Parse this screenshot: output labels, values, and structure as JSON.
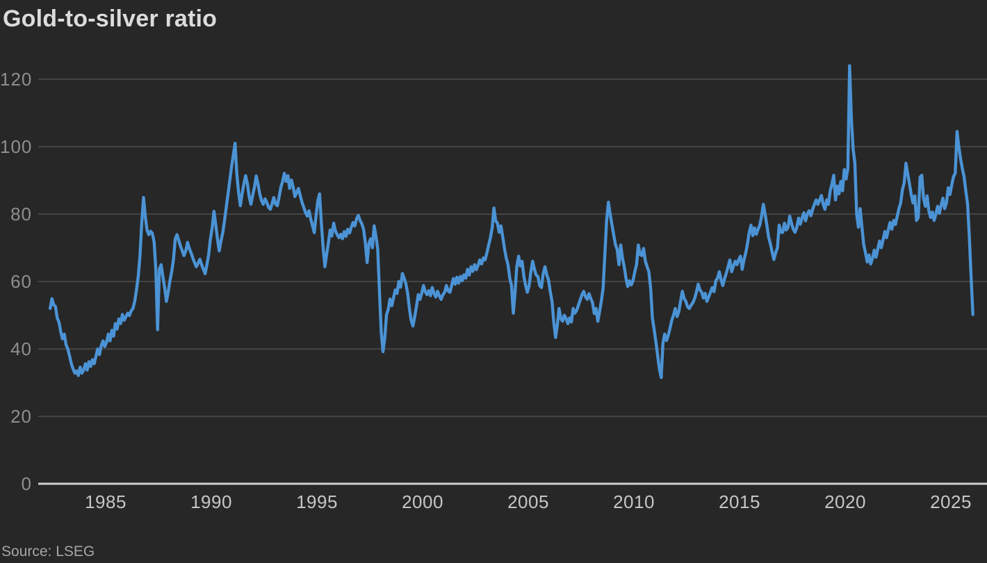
{
  "chart": {
    "title": "Gold-to-silver ratio",
    "source": "Source: LSEG"
  },
  "chart_data": {
    "type": "line",
    "title": "Gold-to-silver ratio",
    "series_name": "Gold-to-silver ratio",
    "source": "Source: LSEG",
    "grid": "horizontal",
    "legend": "none",
    "line_color": "#4b93d5",
    "background_color": "#272727",
    "axis_line_color": "#cfcfcf",
    "gridline_color": "#565656",
    "y_tick_label_color": "#8f8f8f",
    "x_tick_label_color": "#c6c6c6",
    "x_ticks": [
      1985,
      1990,
      1995,
      2000,
      2005,
      2010,
      2015,
      2020,
      2025
    ],
    "y_ticks": [
      0,
      20,
      40,
      60,
      80,
      100,
      120
    ],
    "ylim": [
      0,
      128
    ],
    "xlim": [
      1982.3,
      2026.3
    ],
    "x_start": 1982.375,
    "x_step_years": 0.0833333,
    "values": [
      52.0,
      54.9,
      53.1,
      52.6,
      49.2,
      47.9,
      45.1,
      43.0,
      44.4,
      41.3,
      40.0,
      37.9,
      35.6,
      34.1,
      32.8,
      33.5,
      32.1,
      34.6,
      32.8,
      33.7,
      35.6,
      33.7,
      36.2,
      34.8,
      36.8,
      35.6,
      37.9,
      40.0,
      38.3,
      41.0,
      42.4,
      40.7,
      42.0,
      44.4,
      42.4,
      45.5,
      43.8,
      47.5,
      45.9,
      48.9,
      47.5,
      50.2,
      48.5,
      49.5,
      50.6,
      49.9,
      51.3,
      52.0,
      54.1,
      57.4,
      61.5,
      67.7,
      77.3,
      84.9,
      79.4,
      75.3,
      73.9,
      74.9,
      74.3,
      71.8,
      63.6,
      45.7,
      63.6,
      65.0,
      61.5,
      58.2,
      54.1,
      56.8,
      60.2,
      62.9,
      66.4,
      72.6,
      73.9,
      72.2,
      70.5,
      69.1,
      67.7,
      69.1,
      71.6,
      69.8,
      68.5,
      67.0,
      65.6,
      64.4,
      65.4,
      66.6,
      65.0,
      63.6,
      62.3,
      65.0,
      68.0,
      72.6,
      76.0,
      80.8,
      77.0,
      72.6,
      69.1,
      72.0,
      74.5,
      78.0,
      82.0,
      86.0,
      90.0,
      94.0,
      97.5,
      101.0,
      92.0,
      86.3,
      82.5,
      86.0,
      89.0,
      91.4,
      89.0,
      85.2,
      82.9,
      85.5,
      88.0,
      91.3,
      89.0,
      86.0,
      84.0,
      82.9,
      84.5,
      83.5,
      82.0,
      81.4,
      83.0,
      84.9,
      83.0,
      82.5,
      85.0,
      88.0,
      89.7,
      92.1,
      89.7,
      91.4,
      87.6,
      90.1,
      88.0,
      85.2,
      86.5,
      87.6,
      85.5,
      83.5,
      82.0,
      80.5,
      79.4,
      81.0,
      78.5,
      76.5,
      74.5,
      79.5,
      84.0,
      86.0,
      77.5,
      70.0,
      64.4,
      68.0,
      71.5,
      75.3,
      73.5,
      77.3,
      75.0,
      73.9,
      73.0,
      74.0,
      72.7,
      74.8,
      73.4,
      75.5,
      74.4,
      76.1,
      77.5,
      76.5,
      78.6,
      79.6,
      78.1,
      77.1,
      75.5,
      71.3,
      65.6,
      71.3,
      72.7,
      70.0,
      76.5,
      73.4,
      69.7,
      57.3,
      44.9,
      39.2,
      43.1,
      50.1,
      51.8,
      54.8,
      52.8,
      55.2,
      57.5,
      56.5,
      60.0,
      58.3,
      62.4,
      61.0,
      59.4,
      56.5,
      52.0,
      48.5,
      46.8,
      49.5,
      52.5,
      56.1,
      54.7,
      56.5,
      58.8,
      57.0,
      56.1,
      57.3,
      55.8,
      58.2,
      56.5,
      55.4,
      57.1,
      55.8,
      54.7,
      56.0,
      56.8,
      58.8,
      57.2,
      56.8,
      58.8,
      60.9,
      59.2,
      61.3,
      59.5,
      61.5,
      60.2,
      62.0,
      61.0,
      63.6,
      61.9,
      64.4,
      63.0,
      65.0,
      63.5,
      64.8,
      66.4,
      65.2,
      67.0,
      66.4,
      68.5,
      70.8,
      72.9,
      75.9,
      81.8,
      78.0,
      77.3,
      74.6,
      76.5,
      73.2,
      69.8,
      67.0,
      65.0,
      61.0,
      58.8,
      50.6,
      56.8,
      64.4,
      67.5,
      64.6,
      66.0,
      61.5,
      58.8,
      56.8,
      58.8,
      62.9,
      66.0,
      63.6,
      61.9,
      61.5,
      58.8,
      58.2,
      62.3,
      64.4,
      62.0,
      60.5,
      57.0,
      54.1,
      48.0,
      43.4,
      47.0,
      52.0,
      49.0,
      48.2,
      50.0,
      49.0,
      47.5,
      49.2,
      48.0,
      52.0,
      50.6,
      51.5,
      53.0,
      54.5,
      56.1,
      57.1,
      55.5,
      54.7,
      56.4,
      55.0,
      53.7,
      50.5,
      52.0,
      48.2,
      51.0,
      54.1,
      58.0,
      68.0,
      78.0,
      83.5,
      80.0,
      77.0,
      73.9,
      71.0,
      69.5,
      65.0,
      70.8,
      67.0,
      64.4,
      61.0,
      58.5,
      60.2,
      59.0,
      60.2,
      62.9,
      65.0,
      70.8,
      68.0,
      67.7,
      69.8,
      66.0,
      64.4,
      62.9,
      58.0,
      49.2,
      45.8,
      42.0,
      38.0,
      34.0,
      31.5,
      41.7,
      44.4,
      42.5,
      44.0,
      46.1,
      48.5,
      50.0,
      52.0,
      49.6,
      51.0,
      54.1,
      57.1,
      55.0,
      54.1,
      52.5,
      52.0,
      53.0,
      53.7,
      55.0,
      56.8,
      59.2,
      57.5,
      56.8,
      55.1,
      56.5,
      54.1,
      55.5,
      56.8,
      58.2,
      57.0,
      60.2,
      61.0,
      62.9,
      60.5,
      58.8,
      60.9,
      62.5,
      64.4,
      66.4,
      62.9,
      64.5,
      66.0,
      65.0,
      66.5,
      67.5,
      63.6,
      66.4,
      68.5,
      71.2,
      74.6,
      76.7,
      73.6,
      75.9,
      74.0,
      75.5,
      76.7,
      79.4,
      82.9,
      80.0,
      76.7,
      73.2,
      71.2,
      68.7,
      66.5,
      68.5,
      70.0,
      76.7,
      74.6,
      74.6,
      77.3,
      75.3,
      76.0,
      79.4,
      77.3,
      75.5,
      74.6,
      76.0,
      78.8,
      77.0,
      78.8,
      80.4,
      78.0,
      80.0,
      81.0,
      79.5,
      81.4,
      82.9,
      84.2,
      82.9,
      84.2,
      85.5,
      82.9,
      81.4,
      84.2,
      82.9,
      87.0,
      89.0,
      91.5,
      84.2,
      88.3,
      86.0,
      89.7,
      86.9,
      93.2,
      90.4,
      93.5,
      124.0,
      108.2,
      99.3,
      95.2,
      80.0,
      76.1,
      81.6,
      76.1,
      71.0,
      68.6,
      65.8,
      67.9,
      65.2,
      66.9,
      69.3,
      67.2,
      69.6,
      72.0,
      70.0,
      72.4,
      74.8,
      73.0,
      75.5,
      77.5,
      75.5,
      78.1,
      76.9,
      79.2,
      81.6,
      83.3,
      87.2,
      89.3,
      95.1,
      92.0,
      88.9,
      85.8,
      83.3,
      85.4,
      78.1,
      79.0,
      90.9,
      91.5,
      84.7,
      82.3,
      85.4,
      81.0,
      79.0,
      80.6,
      78.1,
      80.0,
      82.3,
      80.2,
      82.7,
      84.7,
      81.6,
      83.3,
      87.8,
      85.8,
      88.7,
      91.1,
      92.1,
      104.5,
      100.0,
      96.5,
      93.5,
      91.1,
      86.9,
      82.9,
      73.2,
      61.5,
      50.2
    ]
  }
}
